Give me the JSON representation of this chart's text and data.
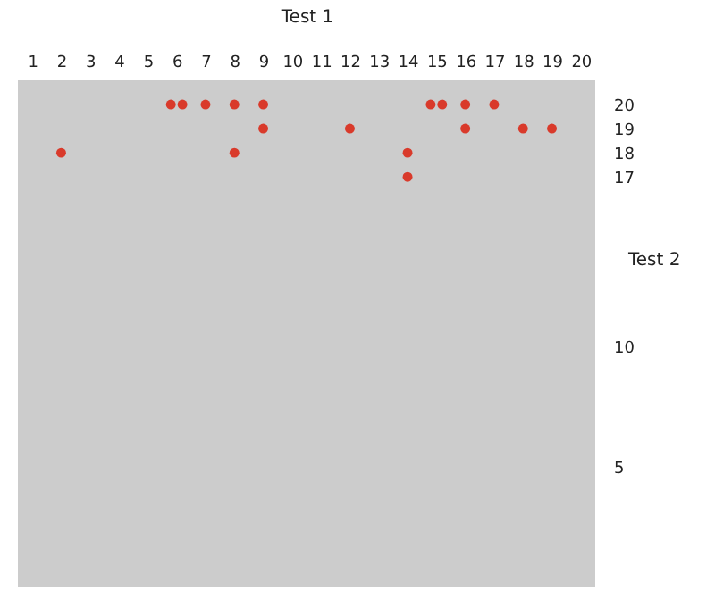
{
  "chart_data": {
    "type": "scatter",
    "xlabel": "Test 1",
    "ylabel": "Test 2",
    "x": [
      5.8,
      6.2,
      7,
      8,
      9,
      14.8,
      15.2,
      16,
      17,
      9,
      12,
      16,
      18,
      19,
      2,
      8,
      14,
      14
    ],
    "series": [
      {
        "color": "#d93a2b",
        "values": [
          20,
          20,
          20,
          20,
          20,
          20,
          20,
          20,
          20,
          19,
          19,
          19,
          19,
          19,
          18,
          18,
          18,
          17
        ]
      }
    ],
    "xlim": [
      0.5,
      20.5
    ],
    "xticks": [
      1,
      2,
      3,
      4,
      5,
      6,
      7,
      8,
      9,
      10,
      11,
      12,
      13,
      14,
      15,
      16,
      17,
      18,
      19,
      20
    ],
    "ylim": [
      0,
      21
    ],
    "yticks": [
      5,
      10,
      17,
      18,
      19,
      20
    ],
    "grid": false,
    "marker": "circle"
  }
}
